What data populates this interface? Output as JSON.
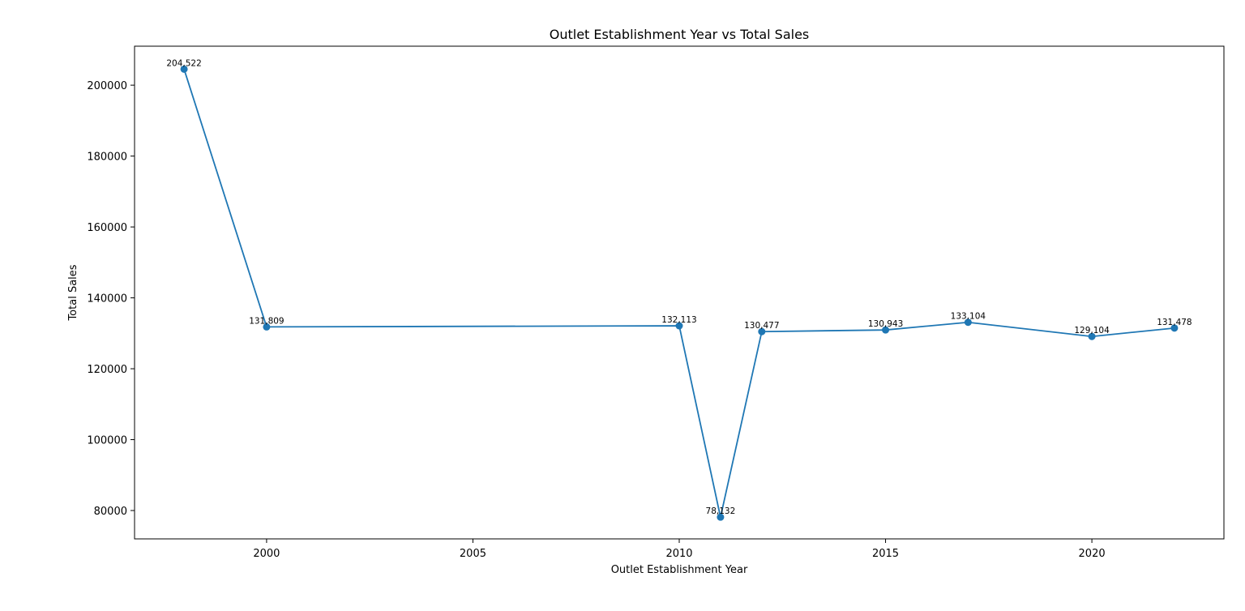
{
  "chart_data": {
    "type": "line",
    "title": "Outlet Establishment Year vs Total Sales",
    "xlabel": "Outlet Establishment Year",
    "ylabel": "Total Sales",
    "xlim": [
      1996.8,
      2023.2
    ],
    "ylim": [
      72000,
      211000
    ],
    "xticks": [
      2000,
      2005,
      2010,
      2015,
      2020
    ],
    "yticks": [
      80000,
      100000,
      120000,
      140000,
      160000,
      180000,
      200000
    ],
    "grid": false,
    "series": [
      {
        "color": "#1f77b4",
        "marker": "circle",
        "points": [
          {
            "x": 1998,
            "y": 204522,
            "label": "204,522"
          },
          {
            "x": 2000,
            "y": 131809,
            "label": "131,809"
          },
          {
            "x": 2010,
            "y": 132113,
            "label": "132,113"
          },
          {
            "x": 2011,
            "y": 78132,
            "label": "78,132"
          },
          {
            "x": 2012,
            "y": 130477,
            "label": "130,477"
          },
          {
            "x": 2015,
            "y": 130943,
            "label": "130,943"
          },
          {
            "x": 2017,
            "y": 133104,
            "label": "133,104"
          },
          {
            "x": 2020,
            "y": 129104,
            "label": "129,104"
          },
          {
            "x": 2022,
            "y": 131478,
            "label": "131,478"
          }
        ]
      }
    ]
  }
}
